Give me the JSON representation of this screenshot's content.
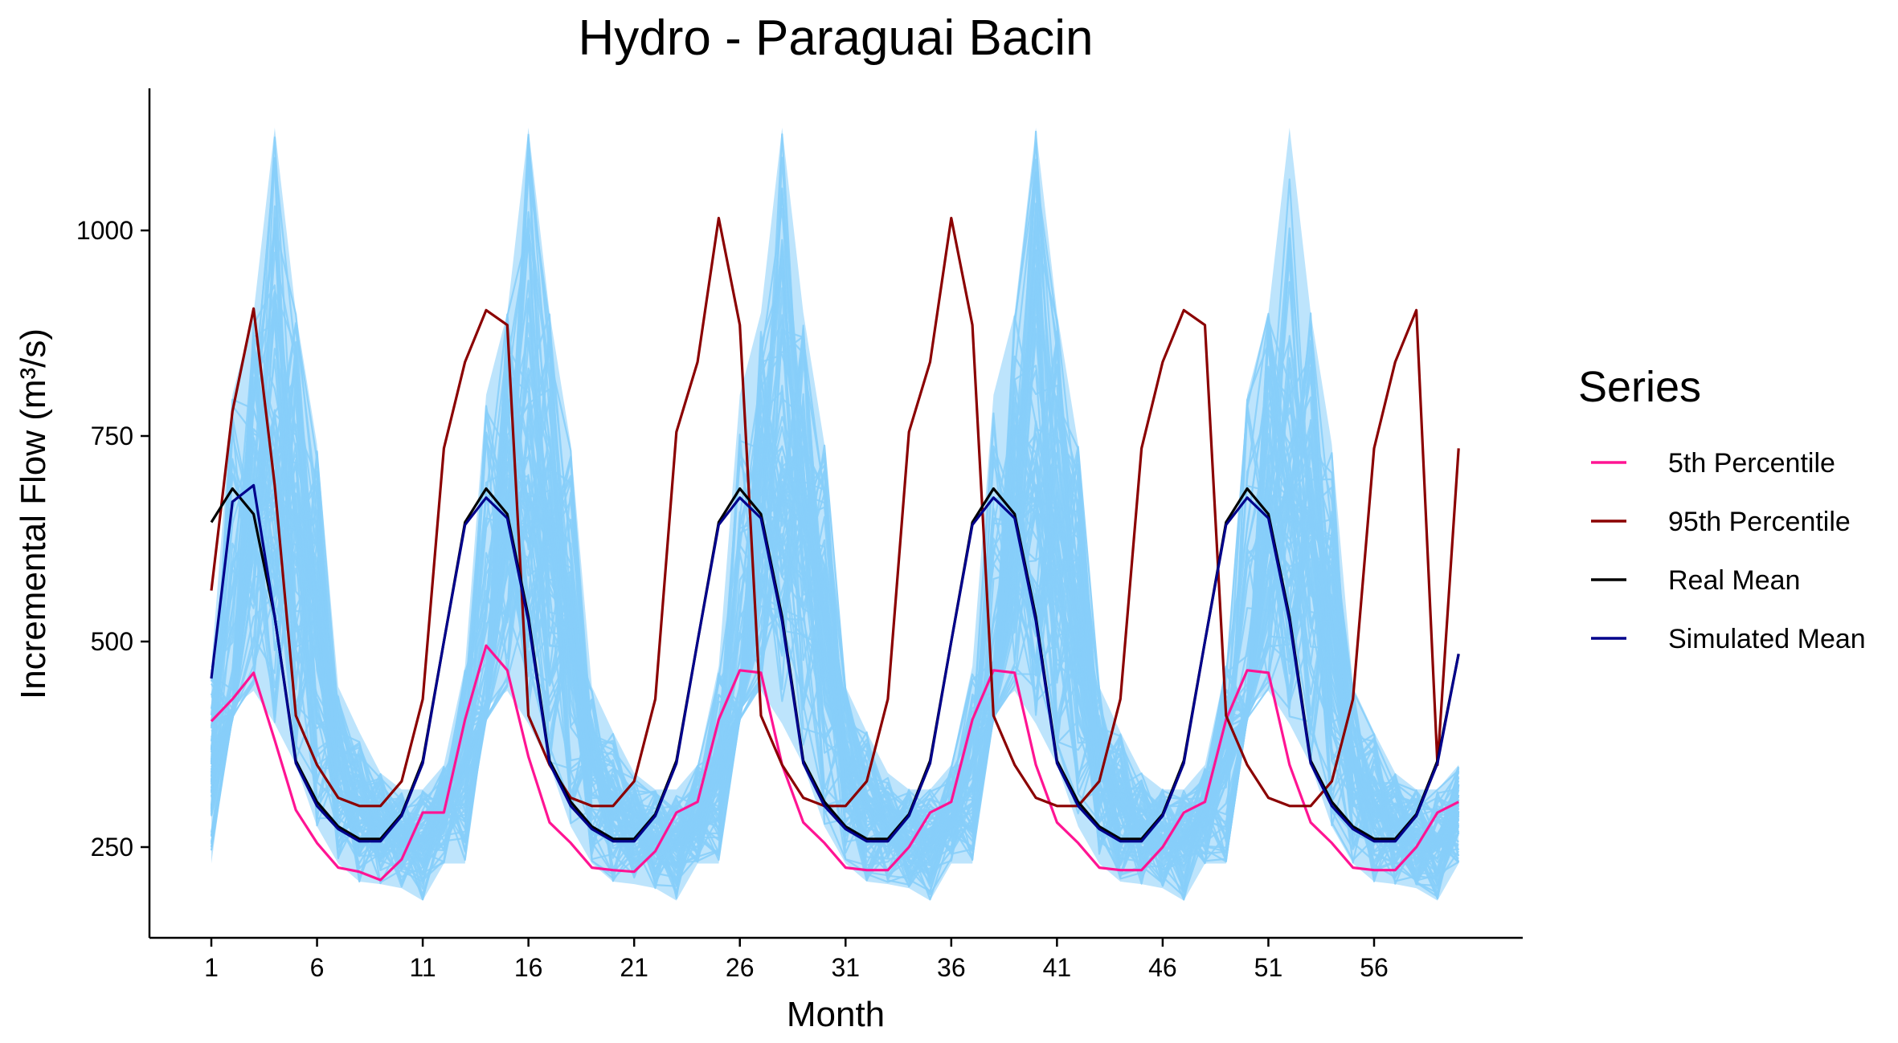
{
  "chart_data": {
    "type": "line",
    "title": "Hydro - Paraguai Bacin",
    "xlabel": "Month",
    "ylabel": "Incremental Flow (m³/s)",
    "xlim": [
      1,
      60
    ],
    "ylim": [
      185,
      1125
    ],
    "x_ticks": [
      1,
      6,
      11,
      16,
      21,
      26,
      31,
      36,
      41,
      46,
      51,
      56
    ],
    "y_ticks": [
      250,
      500,
      750,
      1000
    ],
    "grid": false,
    "legend": {
      "title": "Series",
      "position": "right",
      "entries": [
        "5th Percentile",
        "95th Percentile",
        "Real Mean",
        "Simulated Mean"
      ]
    },
    "colors": {
      "simulations": "#87CEFA",
      "p5": "#FF1493",
      "p95": "#8B0000",
      "real_mean": "#000000",
      "sim_mean": "#00008B"
    },
    "annual_profiles": {
      "months_in_cycle": 12,
      "p5": [
        465,
        462,
        405,
        350,
        280,
        255,
        225,
        222,
        220,
        250,
        292,
        305
      ],
      "p95": [
        765,
        840,
        1015,
        885,
        690,
        410,
        350,
        310,
        300,
        300,
        330,
        430
      ],
      "real_mean": [
        405,
        645,
        686,
        655,
        530,
        355,
        305,
        275,
        260,
        260,
        290,
        355
      ],
      "sim_mean": [
        405,
        642,
        675,
        650,
        525,
        352,
        300,
        272,
        257,
        257,
        288,
        352
      ],
      "sim_max": [
        800,
        900,
        1125,
        900,
        740,
        445,
        390,
        340,
        320,
        320,
        350,
        470
      ],
      "sim_min": [
        420,
        440,
        400,
        350,
        275,
        230,
        208,
        205,
        200,
        185,
        230,
        230
      ]
    },
    "series": [
      {
        "name": "5th Percentile",
        "x": [
          1,
          2,
          3,
          4,
          5,
          6,
          7,
          8,
          9,
          10,
          11,
          12,
          13,
          14,
          15,
          16,
          17,
          18,
          19,
          20,
          21,
          22,
          23,
          24,
          25,
          26,
          27,
          28,
          29,
          30,
          31,
          32,
          33,
          34,
          35,
          36,
          37,
          38,
          39,
          40,
          41,
          42,
          43,
          44,
          45,
          46,
          47,
          48,
          49,
          50,
          51,
          52,
          53,
          54,
          55,
          56,
          57,
          58,
          59,
          60
        ],
        "values": [
          403,
          430,
          462,
          380,
          295,
          255,
          225,
          220,
          210,
          235,
          292,
          292,
          405,
          495,
          465,
          360,
          280,
          255,
          225,
          222,
          220,
          245,
          292,
          305,
          405,
          465,
          462,
          350,
          280,
          255,
          225,
          222,
          222,
          250,
          292,
          305,
          405,
          465,
          462,
          350,
          280,
          255,
          225,
          222,
          222,
          250,
          292,
          305,
          405,
          465,
          462,
          350,
          280,
          255,
          225,
          222,
          222,
          250,
          292,
          305
        ]
      },
      {
        "name": "95th Percentile",
        "x": [
          1,
          2,
          3,
          4,
          5,
          6,
          7,
          8,
          9,
          10,
          11,
          12,
          13,
          14,
          15,
          16,
          17,
          18,
          19,
          20,
          21,
          22,
          23,
          24,
          25,
          26,
          27,
          28,
          29,
          30,
          31,
          32,
          33,
          34,
          35,
          36,
          37,
          38,
          39,
          40,
          41,
          42,
          43,
          44,
          45,
          46,
          47,
          48,
          49,
          50,
          51,
          52,
          53,
          54,
          55,
          56,
          57,
          58,
          59,
          60
        ],
        "values": [
          562,
          780,
          905,
          690,
          410,
          350,
          310,
          300,
          300,
          330,
          430,
          735,
          840,
          903,
          885,
          410,
          350,
          310,
          300,
          300,
          330,
          430,
          755,
          840,
          1015,
          885,
          410,
          350,
          310,
          300,
          300,
          330,
          430,
          755,
          840,
          1015,
          885,
          410,
          350,
          310,
          300,
          300,
          330,
          430,
          735,
          840,
          903,
          885,
          410,
          350,
          310,
          300,
          300,
          330,
          430,
          735,
          840,
          903,
          350,
          735
        ]
      },
      {
        "name": "Real Mean",
        "x": [
          1,
          2,
          3,
          4,
          5,
          6,
          7,
          8,
          9,
          10,
          11,
          12,
          13,
          14,
          15,
          16,
          17,
          18,
          19,
          20,
          21,
          22,
          23,
          24,
          25,
          26,
          27,
          28,
          29,
          30,
          31,
          32,
          33,
          34,
          35,
          36,
          37,
          38,
          39,
          40,
          41,
          42,
          43,
          44,
          45,
          46,
          47,
          48,
          49,
          50,
          51,
          52,
          53,
          54,
          55,
          56,
          57,
          58,
          59,
          60
        ],
        "values": [
          645,
          686,
          655,
          530,
          355,
          305,
          275,
          260,
          260,
          290,
          355,
          500,
          645,
          686,
          655,
          530,
          355,
          305,
          275,
          260,
          260,
          290,
          355,
          500,
          645,
          686,
          655,
          530,
          355,
          305,
          275,
          260,
          260,
          290,
          355,
          500,
          645,
          686,
          655,
          530,
          355,
          305,
          275,
          260,
          260,
          290,
          355,
          500,
          645,
          686,
          655,
          530,
          355,
          305,
          275,
          260,
          260,
          290,
          355,
          485
        ]
      },
      {
        "name": "Simulated Mean",
        "x": [
          1,
          2,
          3,
          4,
          5,
          6,
          7,
          8,
          9,
          10,
          11,
          12,
          13,
          14,
          15,
          16,
          17,
          18,
          19,
          20,
          21,
          22,
          23,
          24,
          25,
          26,
          27,
          28,
          29,
          30,
          31,
          32,
          33,
          34,
          35,
          36,
          37,
          38,
          39,
          40,
          41,
          42,
          43,
          44,
          45,
          46,
          47,
          48,
          49,
          50,
          51,
          52,
          53,
          54,
          55,
          56,
          57,
          58,
          59,
          60
        ],
        "values": [
          455,
          670,
          690,
          530,
          352,
          300,
          272,
          257,
          257,
          288,
          352,
          500,
          642,
          675,
          650,
          525,
          352,
          300,
          272,
          257,
          257,
          288,
          352,
          500,
          642,
          675,
          650,
          525,
          352,
          300,
          272,
          257,
          257,
          288,
          352,
          500,
          642,
          675,
          650,
          525,
          352,
          300,
          272,
          257,
          257,
          288,
          352,
          500,
          642,
          675,
          650,
          525,
          352,
          300,
          272,
          257,
          257,
          288,
          352,
          485
        ]
      }
    ]
  }
}
